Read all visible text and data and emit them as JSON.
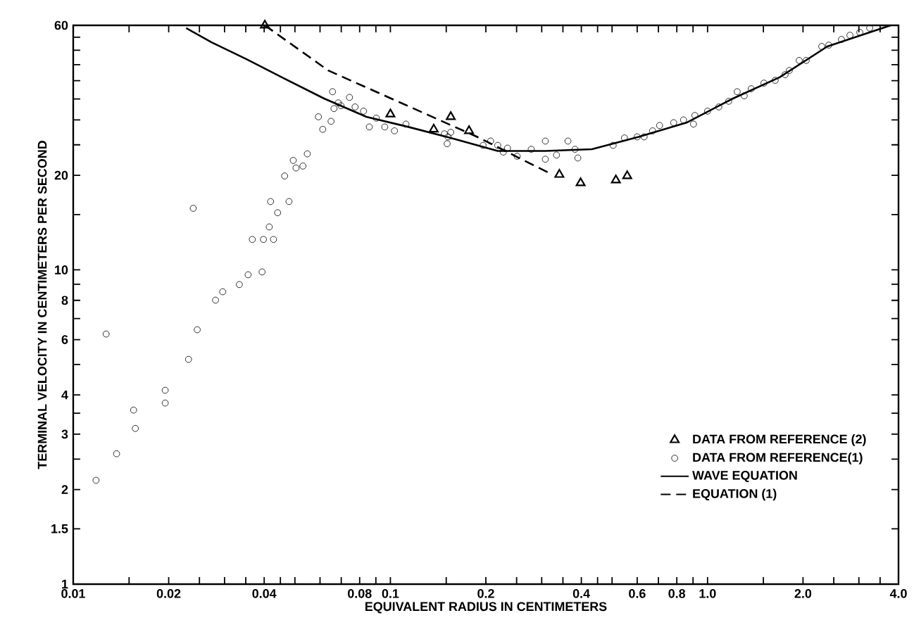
{
  "chart_data": {
    "type": "scatter",
    "xlabel": "EQUIVALENT RADIUS IN CENTIMETERS",
    "ylabel": "TERMINAL VELOCITY IN CENTIMETERS PER SECOND",
    "log": "xy",
    "legend": "bottom right",
    "xlim": [
      0.01,
      4.0
    ],
    "ylim": [
      1,
      60
    ],
    "xticks": [
      0.01,
      {
        "value": 0.015,
        "label": null
      },
      0.02,
      {
        "value": 0.025,
        "label": null
      },
      {
        "value": 0.03,
        "label": null
      },
      {
        "value": 0.035,
        "label": null
      },
      0.04,
      {
        "value": 0.045,
        "label": null
      },
      {
        "value": 0.05,
        "label": null
      },
      {
        "value": 0.06,
        "label": null
      },
      {
        "value": 0.07,
        "label": null
      },
      0.08,
      {
        "value": 0.09,
        "label": null
      },
      0.1,
      {
        "value": 0.15,
        "label": null
      },
      0.2,
      {
        "value": 0.25,
        "label": null
      },
      {
        "value": 0.3,
        "label": null
      },
      {
        "value": 0.35,
        "label": null
      },
      0.4,
      {
        "value": 0.45,
        "label": null
      },
      {
        "value": 0.5,
        "label": null
      },
      0.6,
      {
        "value": 0.7,
        "label": null
      },
      0.8,
      {
        "value": 0.9,
        "label": null
      },
      {
        "value": 1,
        "label": "1.0"
      },
      {
        "value": 1.5,
        "label": null
      },
      {
        "value": 2,
        "label": "2.0"
      },
      {
        "value": 2.5,
        "label": null
      },
      {
        "value": 3,
        "label": null
      },
      {
        "value": 3.5,
        "label": null
      },
      {
        "value": 4,
        "label": "4.0"
      }
    ],
    "yticks": [
      1,
      1.5,
      2,
      {
        "value": 2.5,
        "label": null
      },
      3,
      {
        "value": 3.5,
        "label": null
      },
      4,
      {
        "value": 5,
        "label": null
      },
      6,
      {
        "value": 7,
        "label": null
      },
      8,
      {
        "value": 9,
        "label": null
      },
      10,
      {
        "value": 15,
        "label": null
      },
      20,
      {
        "value": 25,
        "label": null
      },
      {
        "value": 30,
        "label": null
      },
      {
        "value": 35,
        "label": null
      },
      {
        "value": 40,
        "label": null
      },
      {
        "value": 45,
        "label": null
      },
      {
        "value": 50,
        "label": null
      },
      {
        "value": 55,
        "label": null
      },
      60
    ],
    "series": [
      {
        "name": "DATA FROM REFERENCE (2)",
        "marker": "triangle",
        "color": "#000000",
        "x": [
          0.0402,
          0.1,
          0.137,
          0.155,
          0.177,
          0.341,
          0.398,
          0.514,
          0.558
        ],
        "values": [
          60,
          31.3,
          28.0,
          30.7,
          27.7,
          20.1,
          18.9,
          19.3,
          19.9
        ]
      },
      {
        "name": "DATA FROM REFERENCE(1)",
        "marker": "circle",
        "color": "#000000",
        "x": [
          0.0118,
          0.0127,
          0.0137,
          0.0155,
          0.0157,
          0.0195,
          0.0195,
          0.0231,
          0.0246,
          0.0239,
          0.0281,
          0.0296,
          0.0334,
          0.0356,
          0.0394,
          0.0367,
          0.0398,
          0.0428,
          0.0415,
          0.0419,
          0.0441,
          0.0479,
          0.0464,
          0.0494,
          0.0504,
          0.053,
          0.0547,
          0.0593,
          0.0612,
          0.065,
          0.0657,
          0.0664,
          0.0685,
          0.0699,
          0.0743,
          0.0774,
          0.0823,
          0.0858,
          0.0903,
          0.096,
          0.103,
          0.112,
          0.148,
          0.151,
          0.152,
          0.155,
          0.196,
          0.207,
          0.218,
          0.227,
          0.234,
          0.251,
          0.278,
          0.308,
          0.308,
          0.334,
          0.363,
          0.382,
          0.39,
          0.504,
          0.547,
          0.6,
          0.631,
          0.671,
          0.706,
          0.782,
          0.84,
          0.903,
          0.912,
          1.0,
          1.085,
          1.166,
          1.24,
          1.305,
          1.373,
          1.506,
          1.634,
          1.756,
          1.811,
          1.945,
          2.047,
          2.291,
          2.411,
          2.644,
          2.811,
          3.02,
          3.245
        ],
        "values": [
          2.14,
          6.25,
          2.6,
          3.58,
          3.13,
          4.14,
          3.77,
          5.19,
          6.45,
          15.7,
          8.01,
          8.52,
          8.98,
          9.65,
          9.85,
          12.5,
          12.5,
          12.5,
          13.7,
          16.5,
          15.2,
          16.5,
          19.9,
          22.3,
          21.1,
          21.4,
          23.4,
          30.7,
          28.0,
          29.7,
          36.9,
          32.6,
          34.0,
          33.3,
          35.4,
          33.0,
          32.0,
          28.5,
          30.4,
          28.5,
          27.7,
          29.1,
          27.1,
          25.2,
          26.5,
          27.4,
          24.9,
          25.7,
          24.9,
          23.7,
          24.4,
          23.0,
          24.2,
          25.7,
          22.5,
          23.2,
          25.7,
          24.2,
          22.7,
          24.9,
          26.3,
          26.5,
          26.5,
          27.7,
          28.8,
          29.4,
          30.0,
          29.1,
          31.0,
          32.0,
          33.0,
          34.4,
          36.9,
          35.8,
          37.7,
          39.3,
          40.1,
          41.8,
          43.1,
          46.4,
          46.4,
          51.4,
          51.9,
          54.1,
          55.8,
          57.0,
          58.8
        ]
      },
      {
        "name": "WAVE EQUATION",
        "type": "line",
        "line_style": "solid",
        "color": "#000000",
        "x": [
          0.0227,
          0.0273,
          0.0352,
          0.0455,
          0.0618,
          0.084,
          0.114,
          0.155,
          0.218,
          0.308,
          0.432,
          0.606,
          0.858,
          1.202,
          1.686,
          2.387,
          3.78
        ],
        "values": [
          58.8,
          53.0,
          46.8,
          41.0,
          35.1,
          30.7,
          28.5,
          26.3,
          23.9,
          23.9,
          24.2,
          26.5,
          29.4,
          35.1,
          41.0,
          51.4,
          60
        ]
      },
      {
        "name": "EQUATION (1)",
        "type": "line",
        "line_style": "dashed",
        "color": "#000000",
        "x": [
          0.0402,
          0.0637,
          0.127,
          0.191,
          0.259,
          0.324
        ],
        "values": [
          60,
          43.1,
          31.6,
          26.3,
          22.5,
          20.1
        ]
      }
    ]
  }
}
